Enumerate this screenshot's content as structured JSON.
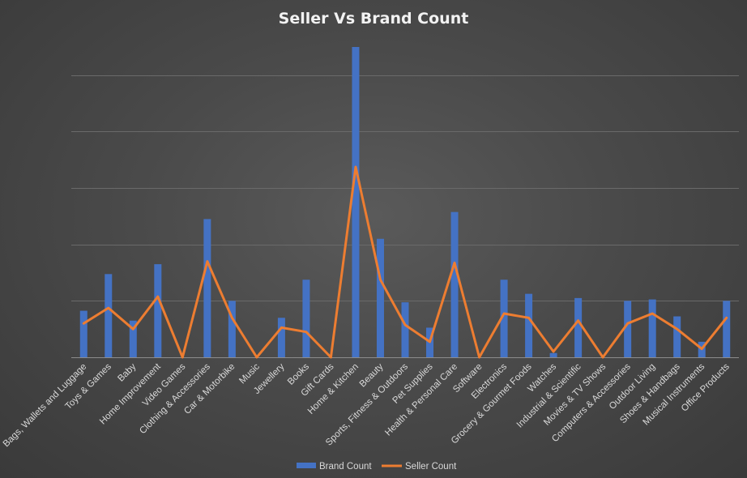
{
  "chart_data": {
    "type": "bar",
    "title": "Seller Vs Brand Count",
    "xlabel": "",
    "ylabel": "",
    "ylim": [
      0,
      110
    ],
    "grid": true,
    "legend_position": "bottom",
    "categories": [
      "Bags, Wallets and Luggage",
      "Toys & Games",
      "Baby",
      "Home Improvement",
      "Video Games",
      "Clothing & Accessories",
      "Car & Motorbike",
      "Music",
      "Jewellery",
      "Books",
      "Gift Cards",
      "Home & Kitchen",
      "Beauty",
      "Sports, Fitness & Outdoors",
      "Pet Supplies",
      "Health & Personal Care",
      "Software",
      "Electronics",
      "Grocery & Gourmet Foods",
      "Watches",
      "Industrial & Scientific",
      "Movies & TV Shows",
      "Computers & Accessories",
      "Outdoor Living",
      "Shoes & Handbags",
      "Musical Instruments",
      "Office Products"
    ],
    "series": [
      {
        "name": "Brand Count",
        "kind": "bar",
        "color": "#4472c4",
        "values": [
          16.5,
          29.5,
          13,
          33,
          0,
          49,
          20,
          0,
          14,
          27.5,
          0,
          110,
          42,
          19.5,
          10.5,
          51.5,
          0,
          27.5,
          22.5,
          1.5,
          21,
          0,
          20,
          20.5,
          14.5,
          5.5,
          20
        ]
      },
      {
        "name": "Seller Count",
        "kind": "line",
        "color": "#ed7d31",
        "values": [
          12,
          17.5,
          10,
          21.5,
          0,
          34,
          14,
          0,
          10.5,
          9,
          0,
          67.5,
          27.5,
          11.5,
          5.5,
          33.5,
          0,
          15.5,
          14,
          2,
          13,
          0,
          12,
          15.5,
          10,
          3,
          14
        ]
      }
    ]
  }
}
